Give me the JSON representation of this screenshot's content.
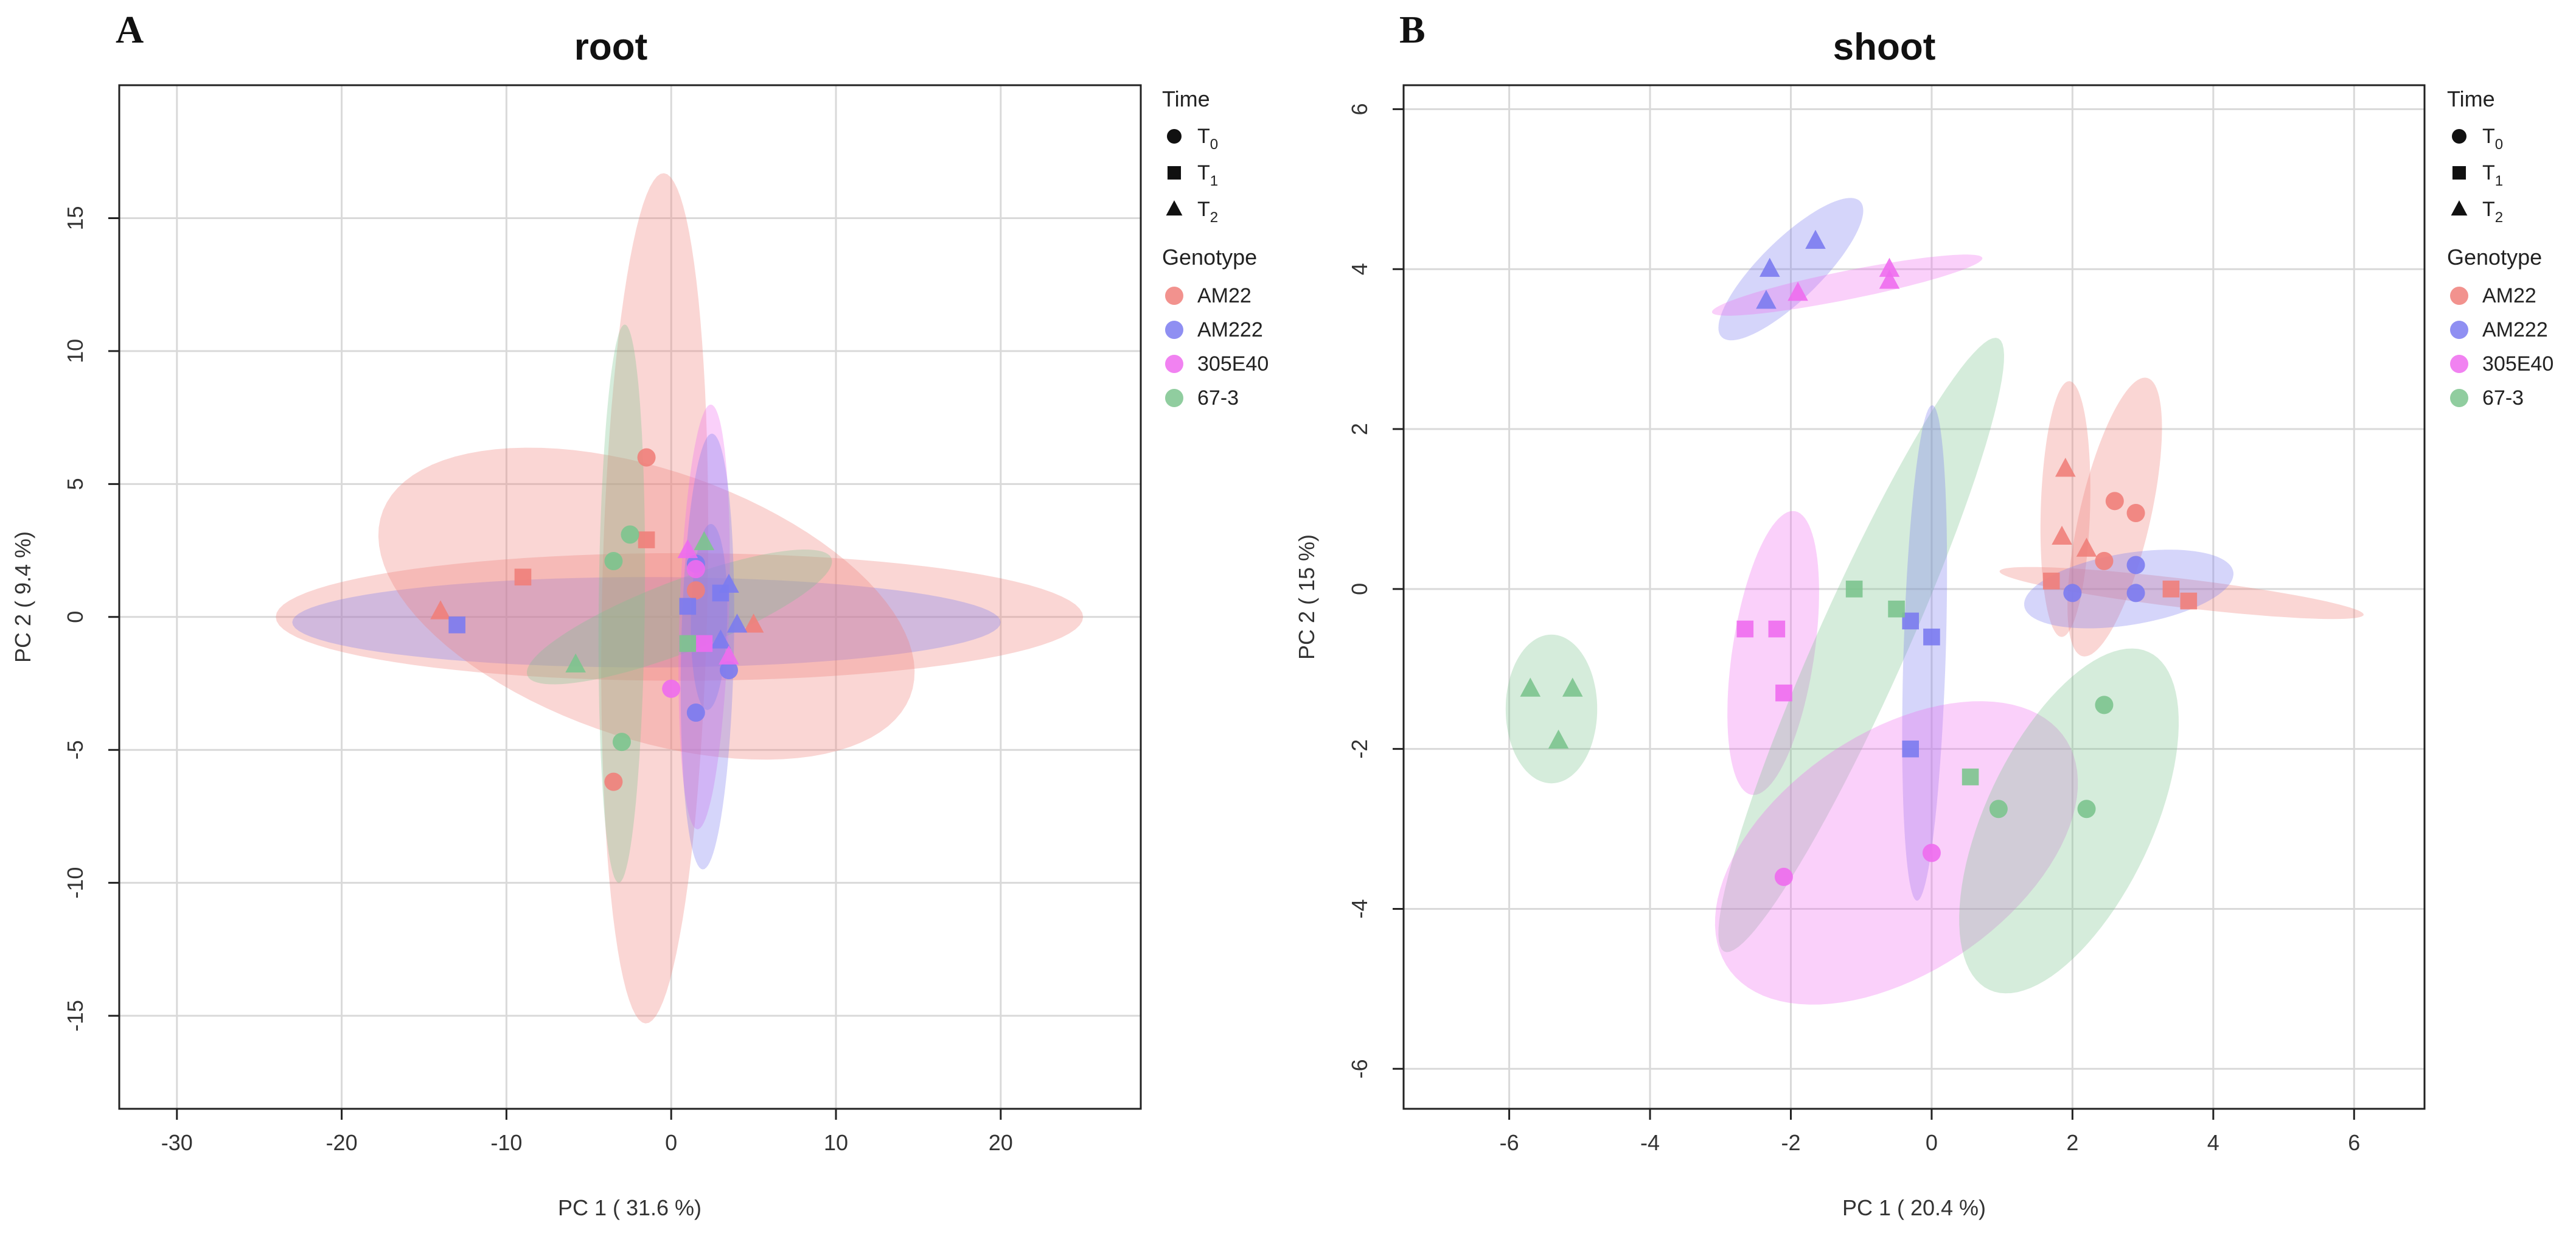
{
  "colors": {
    "AM22": "#f07f7a",
    "AM222": "#7b7bf0",
    "305E40": "#ee6cee",
    "67-3": "#7cc48e",
    "grid": "#d9d9d9",
    "frame": "#222222"
  },
  "legend": {
    "time_title": "Time",
    "time_items": [
      {
        "label": "T",
        "sub": "0",
        "shape": "circle"
      },
      {
        "label": "T",
        "sub": "1",
        "shape": "square"
      },
      {
        "label": "T",
        "sub": "2",
        "shape": "triangle"
      }
    ],
    "genotype_title": "Genotype",
    "genotype_items": [
      {
        "label": "AM22",
        "key": "AM22"
      },
      {
        "label": "AM222",
        "key": "AM222"
      },
      {
        "label": "305E40",
        "key": "305E40"
      },
      {
        "label": "67-3",
        "key": "67-3"
      }
    ]
  },
  "chart_data": [
    {
      "panel": "A",
      "type": "scatter",
      "title": "root",
      "xlabel": "PC 1 ( 31.6 %)",
      "ylabel": "PC 2 ( 9.4 %)",
      "xlim": [
        -33.5,
        28.5
      ],
      "ylim": [
        -18.5,
        20
      ],
      "xticks": [
        -30,
        -20,
        -10,
        0,
        10,
        20
      ],
      "yticks": [
        -15,
        -10,
        -5,
        0,
        5,
        10,
        15
      ],
      "ellipses": [
        {
          "group": "AM22",
          "cx": 0.5,
          "cy": 0.0,
          "rx": 24.5,
          "ry": 2.4,
          "angle": 0
        },
        {
          "group": "AM222",
          "cx": -1.5,
          "cy": -0.2,
          "rx": 21.5,
          "ry": 1.7,
          "angle": 0
        },
        {
          "group": "AM22",
          "cx": -1.5,
          "cy": 0.5,
          "rx": 16.5,
          "ry": 5.2,
          "angle": -10
        },
        {
          "group": "AM22",
          "cx": -1.0,
          "cy": 0.7,
          "rx": 16.0,
          "ry": 3.2,
          "angle": 88
        },
        {
          "group": "67-3",
          "cx": -3.0,
          "cy": 0.5,
          "rx": 10.5,
          "ry": 1.4,
          "angle": 89
        },
        {
          "group": "67-3",
          "cx": 0.5,
          "cy": 0.0,
          "rx": 9.5,
          "ry": 1.4,
          "angle": 13
        },
        {
          "group": "305E40",
          "cx": 2.0,
          "cy": 0.0,
          "rx": 8.0,
          "ry": 1.5,
          "angle": 87
        },
        {
          "group": "AM222",
          "cx": 2.2,
          "cy": -1.3,
          "rx": 8.2,
          "ry": 1.6,
          "angle": 88
        },
        {
          "group": "AM222",
          "cx": 2.3,
          "cy": 0.0,
          "rx": 3.5,
          "ry": 1.1,
          "angle": 88
        }
      ],
      "points": [
        {
          "group": "AM22",
          "shape": "circle",
          "x": -1.5,
          "y": 6.0
        },
        {
          "group": "AM22",
          "shape": "circle",
          "x": -3.5,
          "y": -6.2
        },
        {
          "group": "AM22",
          "shape": "circle",
          "x": 1.5,
          "y": 1.0
        },
        {
          "group": "AM22",
          "shape": "square",
          "x": -9.0,
          "y": 1.5
        },
        {
          "group": "AM22",
          "shape": "square",
          "x": -1.5,
          "y": 2.9
        },
        {
          "group": "AM22",
          "shape": "triangle",
          "x": -14.0,
          "y": 0.2
        },
        {
          "group": "AM22",
          "shape": "triangle",
          "x": 5.0,
          "y": -0.3
        },
        {
          "group": "AM222",
          "shape": "circle",
          "x": 1.5,
          "y": -3.6
        },
        {
          "group": "AM222",
          "shape": "circle",
          "x": 3.5,
          "y": -2.0
        },
        {
          "group": "AM222",
          "shape": "circle",
          "x": 1.5,
          "y": 2.0
        },
        {
          "group": "AM222",
          "shape": "square",
          "x": -13.0,
          "y": -0.3
        },
        {
          "group": "AM222",
          "shape": "square",
          "x": 1.0,
          "y": 0.4
        },
        {
          "group": "AM222",
          "shape": "square",
          "x": 3.0,
          "y": 0.9
        },
        {
          "group": "AM222",
          "shape": "triangle",
          "x": 3.5,
          "y": 1.2
        },
        {
          "group": "AM222",
          "shape": "triangle",
          "x": 3.0,
          "y": -0.9
        },
        {
          "group": "AM222",
          "shape": "triangle",
          "x": 4.0,
          "y": -0.3
        },
        {
          "group": "305E40",
          "shape": "circle",
          "x": 0.0,
          "y": -2.7
        },
        {
          "group": "305E40",
          "shape": "circle",
          "x": 1.5,
          "y": 1.8
        },
        {
          "group": "305E40",
          "shape": "square",
          "x": 2.0,
          "y": -1.0
        },
        {
          "group": "305E40",
          "shape": "triangle",
          "x": 1.0,
          "y": 2.5
        },
        {
          "group": "305E40",
          "shape": "triangle",
          "x": 3.5,
          "y": -1.5
        },
        {
          "group": "67-3",
          "shape": "circle",
          "x": -2.5,
          "y": 3.1
        },
        {
          "group": "67-3",
          "shape": "circle",
          "x": -3.5,
          "y": 2.1
        },
        {
          "group": "67-3",
          "shape": "circle",
          "x": -3.0,
          "y": -4.7
        },
        {
          "group": "67-3",
          "shape": "square",
          "x": 1.0,
          "y": -1.0
        },
        {
          "group": "67-3",
          "shape": "triangle",
          "x": -5.8,
          "y": -1.8
        },
        {
          "group": "67-3",
          "shape": "triangle",
          "x": 2.0,
          "y": 2.8
        }
      ]
    },
    {
      "panel": "B",
      "type": "scatter",
      "title": "shoot",
      "xlabel": "PC 1 ( 20.4 %)",
      "ylabel": "PC 2 ( 15 %)",
      "xlim": [
        -7.5,
        7.0
      ],
      "ylim": [
        -6.5,
        6.3
      ],
      "xticks": [
        -6,
        -4,
        -2,
        0,
        2,
        4,
        6
      ],
      "yticks": [
        -6,
        -4,
        -2,
        0,
        2,
        4,
        6
      ],
      "ellipses": [
        {
          "group": "AM222",
          "cx": -2.0,
          "cy": 4.0,
          "rx": 1.3,
          "ry": 0.4,
          "angle": 40
        },
        {
          "group": "305E40",
          "cx": -1.2,
          "cy": 3.8,
          "rx": 1.95,
          "ry": 0.18,
          "angle": 10
        },
        {
          "group": "67-3",
          "cx": -5.4,
          "cy": -1.5,
          "rx": 0.93,
          "ry": 0.65,
          "angle": 90
        },
        {
          "group": "305E40",
          "cx": -2.25,
          "cy": -0.8,
          "rx": 1.8,
          "ry": 0.58,
          "angle": 80
        },
        {
          "group": "67-3",
          "cx": -1.0,
          "cy": -0.7,
          "rx": 4.3,
          "ry": 0.62,
          "angle": 63
        },
        {
          "group": "AM222",
          "cx": -0.1,
          "cy": -0.8,
          "rx": 3.1,
          "ry": 0.3,
          "angle": 88
        },
        {
          "group": "305E40",
          "cx": -0.5,
          "cy": -3.3,
          "rx": 2.8,
          "ry": 1.55,
          "angle": 28
        },
        {
          "group": "67-3",
          "cx": 1.95,
          "cy": -2.9,
          "rx": 2.4,
          "ry": 1.15,
          "angle": 60
        },
        {
          "group": "AM22",
          "cx": 1.9,
          "cy": 1.0,
          "rx": 1.6,
          "ry": 0.35,
          "angle": 88
        },
        {
          "group": "AM22",
          "cx": 2.6,
          "cy": 0.9,
          "rx": 1.8,
          "ry": 0.5,
          "angle": 75
        },
        {
          "group": "AM22",
          "cx": 3.55,
          "cy": -0.05,
          "rx": 2.6,
          "ry": 0.18,
          "angle": -6
        },
        {
          "group": "AM222",
          "cx": 2.8,
          "cy": 0.0,
          "rx": 1.5,
          "ry": 0.45,
          "angle": 8
        }
      ],
      "points": [
        {
          "group": "AM22",
          "shape": "circle",
          "x": 2.6,
          "y": 1.1
        },
        {
          "group": "AM22",
          "shape": "circle",
          "x": 2.9,
          "y": 0.95
        },
        {
          "group": "AM22",
          "shape": "circle",
          "x": 2.45,
          "y": 0.35
        },
        {
          "group": "AM22",
          "shape": "square",
          "x": 1.7,
          "y": 0.1
        },
        {
          "group": "AM22",
          "shape": "square",
          "x": 3.4,
          "y": 0.0
        },
        {
          "group": "AM22",
          "shape": "square",
          "x": 3.65,
          "y": -0.15
        },
        {
          "group": "AM22",
          "shape": "triangle",
          "x": 1.9,
          "y": 1.5
        },
        {
          "group": "AM22",
          "shape": "triangle",
          "x": 1.85,
          "y": 0.65
        },
        {
          "group": "AM22",
          "shape": "triangle",
          "x": 2.2,
          "y": 0.5
        },
        {
          "group": "AM222",
          "shape": "circle",
          "x": 2.0,
          "y": -0.05
        },
        {
          "group": "AM222",
          "shape": "circle",
          "x": 2.9,
          "y": 0.3
        },
        {
          "group": "AM222",
          "shape": "circle",
          "x": 2.9,
          "y": -0.05
        },
        {
          "group": "AM222",
          "shape": "square",
          "x": -0.3,
          "y": -0.4
        },
        {
          "group": "AM222",
          "shape": "square",
          "x": 0.0,
          "y": -0.6
        },
        {
          "group": "AM222",
          "shape": "square",
          "x": -0.3,
          "y": -2.0
        },
        {
          "group": "AM222",
          "shape": "triangle",
          "x": -2.3,
          "y": 4.0
        },
        {
          "group": "AM222",
          "shape": "triangle",
          "x": -1.65,
          "y": 4.35
        },
        {
          "group": "AM222",
          "shape": "triangle",
          "x": -2.35,
          "y": 3.6
        },
        {
          "group": "305E40",
          "shape": "circle",
          "x": -2.1,
          "y": -3.6
        },
        {
          "group": "305E40",
          "shape": "circle",
          "x": 0.0,
          "y": -3.3
        },
        {
          "group": "305E40",
          "shape": "square",
          "x": -2.65,
          "y": -0.5
        },
        {
          "group": "305E40",
          "shape": "square",
          "x": -2.2,
          "y": -0.5
        },
        {
          "group": "305E40",
          "shape": "square",
          "x": -2.1,
          "y": -1.3
        },
        {
          "group": "305E40",
          "shape": "triangle",
          "x": -1.9,
          "y": 3.7
        },
        {
          "group": "305E40",
          "shape": "triangle",
          "x": -0.6,
          "y": 4.0
        },
        {
          "group": "305E40",
          "shape": "triangle",
          "x": -0.6,
          "y": 3.85
        },
        {
          "group": "67-3",
          "shape": "circle",
          "x": 2.45,
          "y": -1.45
        },
        {
          "group": "67-3",
          "shape": "circle",
          "x": 0.95,
          "y": -2.75
        },
        {
          "group": "67-3",
          "shape": "circle",
          "x": 2.2,
          "y": -2.75
        },
        {
          "group": "67-3",
          "shape": "square",
          "x": -1.1,
          "y": 0.0
        },
        {
          "group": "67-3",
          "shape": "square",
          "x": -0.5,
          "y": -0.25
        },
        {
          "group": "67-3",
          "shape": "square",
          "x": 0.55,
          "y": -2.35
        },
        {
          "group": "67-3",
          "shape": "triangle",
          "x": -5.7,
          "y": -1.25
        },
        {
          "group": "67-3",
          "shape": "triangle",
          "x": -5.1,
          "y": -1.25
        },
        {
          "group": "67-3",
          "shape": "triangle",
          "x": -5.3,
          "y": -1.9
        }
      ]
    }
  ]
}
